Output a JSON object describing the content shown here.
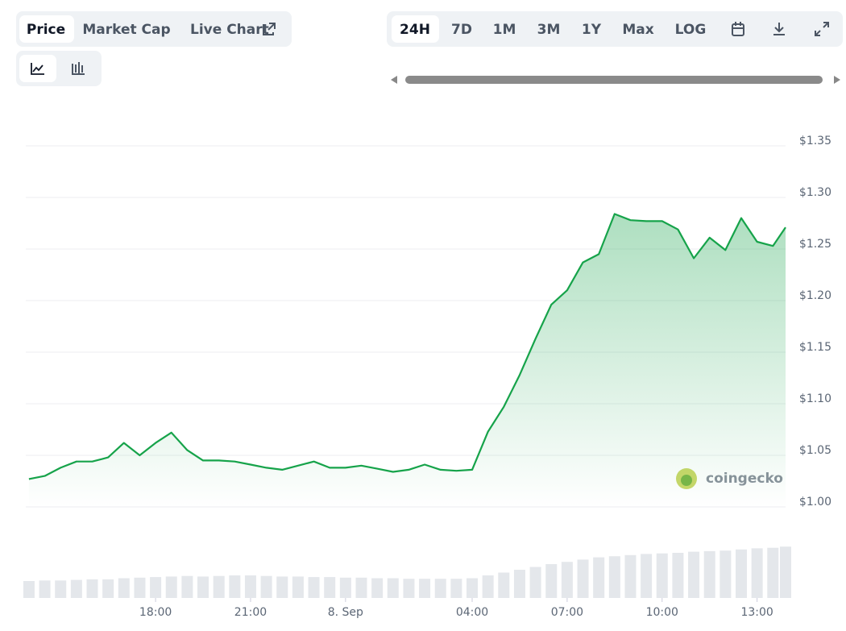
{
  "tabs": [
    "Price",
    "Market Cap",
    "Live Chart"
  ],
  "ranges": [
    "24H",
    "7D",
    "1M",
    "3M",
    "1Y",
    "Max",
    "LOG"
  ],
  "watermark": "coingecko",
  "chart_data": {
    "type": "line",
    "x": [
      14,
      14.5,
      15,
      15.5,
      16,
      16.5,
      17,
      17.5,
      18,
      18.5,
      19,
      19.5,
      20,
      20.5,
      21,
      21.5,
      22,
      22.5,
      23,
      23.5,
      24,
      24.5,
      25,
      25.5,
      26,
      26.5,
      27,
      27.5,
      28,
      28.5,
      29,
      29.5,
      30,
      30.5,
      31,
      31.5,
      32,
      32.5,
      33,
      33.5,
      34,
      34.5,
      35,
      35.5,
      36,
      36.5,
      37,
      37.5,
      37.9
    ],
    "series": [
      {
        "color": "#16a34a",
        "values": [
          1.027,
          1.03,
          1.038,
          1.044,
          1.044,
          1.048,
          1.062,
          1.05,
          1.062,
          1.072,
          1.055,
          1.045,
          1.045,
          1.044,
          1.041,
          1.038,
          1.036,
          1.04,
          1.044,
          1.038,
          1.038,
          1.04,
          1.037,
          1.034,
          1.036,
          1.041,
          1.036,
          1.035,
          1.036,
          1.073,
          1.097,
          1.128,
          1.163,
          1.196,
          1.21,
          1.237,
          1.245,
          1.284,
          1.278,
          1.277,
          1.277,
          1.269,
          1.241,
          1.261,
          1.249,
          1.28,
          1.257,
          1.253,
          1.271
        ]
      }
    ],
    "volume": {
      "color": "#e4e7eb",
      "ylim": [
        0,
        100
      ],
      "values": [
        30,
        31,
        31,
        32,
        33,
        33,
        35,
        36,
        37,
        38,
        39,
        38,
        39,
        40,
        40,
        39,
        38,
        38,
        37,
        37,
        36,
        36,
        35,
        35,
        34,
        34,
        34,
        34,
        35,
        40,
        45,
        50,
        55,
        60,
        64,
        68,
        72,
        74,
        76,
        78,
        79,
        80,
        82,
        83,
        84,
        86,
        88,
        89,
        91
      ]
    },
    "xlim": [
      13.9,
      37.9
    ],
    "xticks": [
      {
        "value": 18,
        "label": "18:00"
      },
      {
        "value": 21,
        "label": "21:00"
      },
      {
        "value": 24,
        "label": "8. Sep"
      },
      {
        "value": 28,
        "label": "04:00"
      },
      {
        "value": 31,
        "label": "07:00"
      },
      {
        "value": 34,
        "label": "10:00"
      },
      {
        "value": 37,
        "label": "13:00"
      }
    ],
    "ylim": [
      1.0,
      1.35
    ],
    "yticks": [
      {
        "value": 1.0,
        "label": "$1.00"
      },
      {
        "value": 1.05,
        "label": "$1.05"
      },
      {
        "value": 1.1,
        "label": "$1.10"
      },
      {
        "value": 1.15,
        "label": "$1.15"
      },
      {
        "value": 1.2,
        "label": "$1.20"
      },
      {
        "value": 1.25,
        "label": "$1.25"
      },
      {
        "value": 1.3,
        "label": "$1.30"
      },
      {
        "value": 1.35,
        "label": "$1.35"
      }
    ],
    "grid": true
  }
}
